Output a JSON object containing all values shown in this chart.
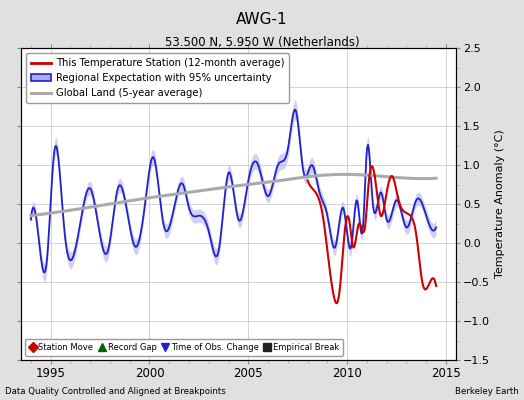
{
  "title": "AWG-1",
  "subtitle": "53.500 N, 5.950 W (Netherlands)",
  "ylabel": "Temperature Anomaly (°C)",
  "xlabel_left": "Data Quality Controlled and Aligned at Breakpoints",
  "xlabel_right": "Berkeley Earth",
  "ylim": [
    -1.5,
    2.5
  ],
  "xlim": [
    1993.5,
    2015.5
  ],
  "xticks": [
    1995,
    2000,
    2005,
    2010,
    2015
  ],
  "yticks": [
    -1.5,
    -1.0,
    -0.5,
    0.0,
    0.5,
    1.0,
    1.5,
    2.0,
    2.5
  ],
  "bg_color": "#e0e0e0",
  "plot_bg_color": "#ffffff",
  "blue_line_color": "#2222cc",
  "blue_fill_color": "#aaaaee",
  "red_line_color": "#cc0000",
  "gray_line_color": "#aaaaaa",
  "legend1_labels": [
    "This Temperature Station (12-month average)",
    "Regional Expectation with 95% uncertainty",
    "Global Land (5-year average)"
  ],
  "legend2_labels": [
    "Station Move",
    "Record Gap",
    "Time of Obs. Change",
    "Empirical Break"
  ],
  "legend2_colors": [
    "#cc0000",
    "#006600",
    "#2222cc",
    "#222222"
  ],
  "legend2_markers": [
    "D",
    "^",
    "v",
    "s"
  ]
}
